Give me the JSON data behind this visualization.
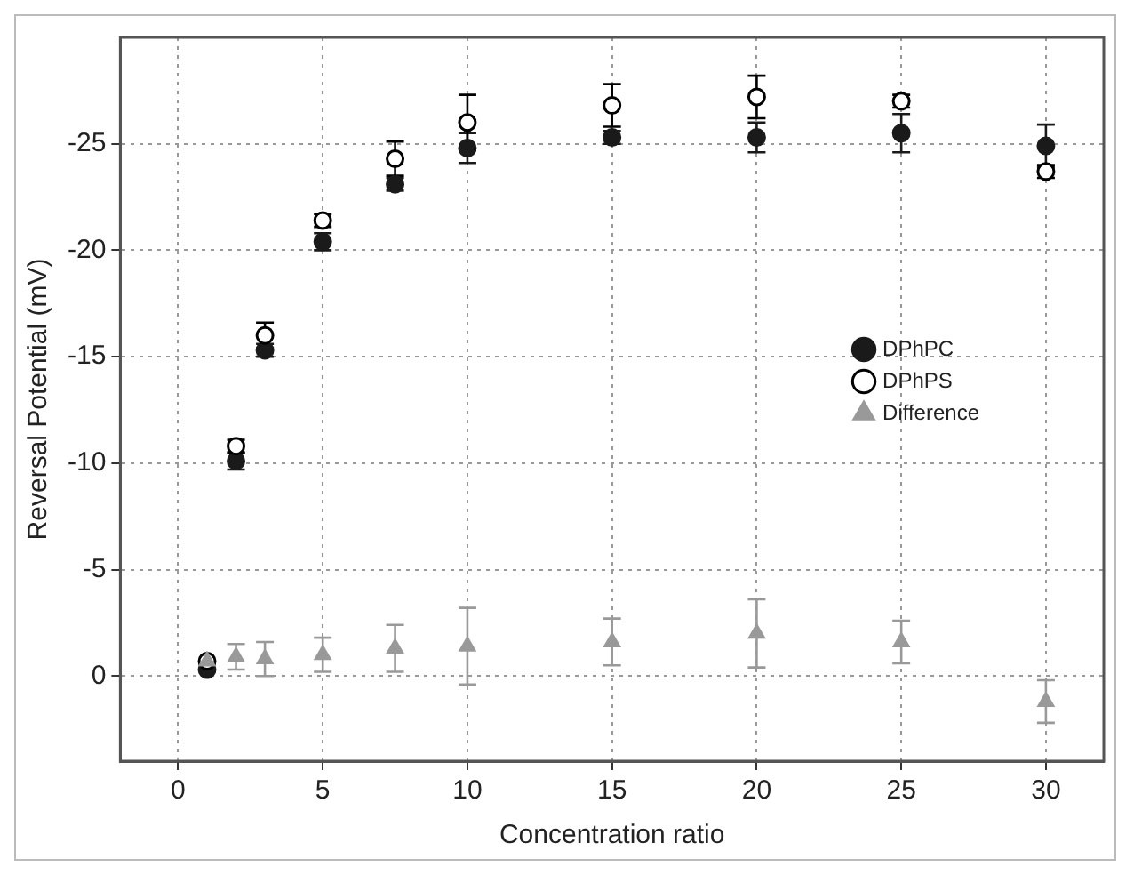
{
  "chart_data": {
    "type": "scatter",
    "xlabel": "Concentration ratio",
    "ylabel": "Reversal Potential (mV)",
    "xlim": [
      -2,
      32
    ],
    "xticks": [
      0,
      5,
      10,
      15,
      20,
      25,
      30
    ],
    "ylim": [
      4,
      -30
    ],
    "yticks": [
      0,
      -5,
      -10,
      -15,
      -20,
      -25
    ],
    "grid": true,
    "legend": "right",
    "line_style": "dotted",
    "series": [
      {
        "name": "DPhPC",
        "color": "#1a1a1a",
        "marker": "circle",
        "x": [
          1,
          2,
          3,
          5,
          7.5,
          10,
          15,
          20,
          25,
          30
        ],
        "values": [
          -0.3,
          -10.1,
          -15.3,
          -20.4,
          -23.1,
          -24.8,
          -25.3,
          -25.3,
          -25.5,
          -24.9
        ],
        "errors": [
          null,
          0.4,
          0.3,
          0.4,
          0.3,
          0.7,
          0.3,
          0.7,
          0.9,
          1.0
        ]
      },
      {
        "name": "DPhPS",
        "color": "#ffffff",
        "marker": "circle",
        "x": [
          1,
          2,
          3,
          5,
          7.5,
          10,
          15,
          20,
          25,
          30
        ],
        "values": [
          -0.7,
          -10.8,
          -16.0,
          -21.4,
          -24.3,
          -26.0,
          -26.8,
          -27.2,
          -27.0,
          -23.7
        ],
        "errors": [
          null,
          0.3,
          0.6,
          0.3,
          0.8,
          1.3,
          1.0,
          1.0,
          0.3,
          0.3
        ]
      },
      {
        "name": "Difference",
        "color": "#999999",
        "marker": "triangle",
        "x": [
          1,
          2,
          3,
          5,
          7.5,
          10,
          15,
          20,
          25,
          30
        ],
        "values": [
          -0.7,
          -0.9,
          -0.8,
          -1.0,
          -1.3,
          -1.4,
          -1.6,
          -2.0,
          -1.6,
          1.2
        ],
        "errors": [
          null,
          0.6,
          0.8,
          0.8,
          1.1,
          1.8,
          1.1,
          1.6,
          1.0,
          1.0
        ]
      }
    ]
  }
}
